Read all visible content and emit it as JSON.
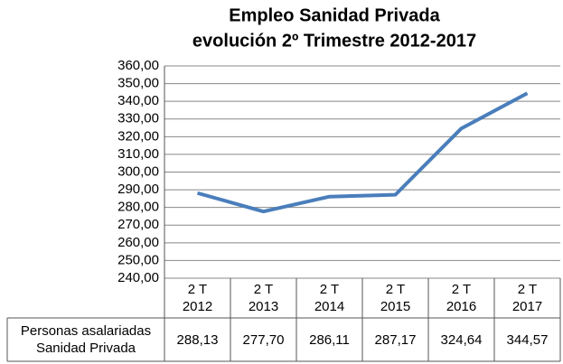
{
  "chart_data": {
    "type": "line",
    "title": [
      "Empleo Sanidad Privada",
      "evolución 2º Trimestre 2012-2017"
    ],
    "categories": [
      "2 T 2012",
      "2 T 2013",
      "2 T 2014",
      "2 T 2015",
      "2 T 2016",
      "2 T 2017"
    ],
    "series": [
      {
        "name": "Personas asalariadas Sanidad Privada",
        "color": "#4a7ebb",
        "values": [
          288.13,
          277.7,
          286.11,
          287.17,
          324.64,
          344.57
        ],
        "value_labels": [
          "288,13",
          "277,70",
          "286,11",
          "287,17",
          "324,64",
          "344,57"
        ]
      }
    ],
    "ylim": [
      240,
      360
    ],
    "yticks": [
      {
        "value": 240,
        "label": "240,00"
      },
      {
        "value": 250,
        "label": "250,00"
      },
      {
        "value": 260,
        "label": "260,00"
      },
      {
        "value": 270,
        "label": "270,00"
      },
      {
        "value": 280,
        "label": "280,00"
      },
      {
        "value": 290,
        "label": "290,00"
      },
      {
        "value": 300,
        "label": "300,00"
      },
      {
        "value": 310,
        "label": "310,00"
      },
      {
        "value": 320,
        "label": "320,00"
      },
      {
        "value": 330,
        "label": "330,00"
      },
      {
        "value": 340,
        "label": "340,00"
      },
      {
        "value": 350,
        "label": "350,00"
      },
      {
        "value": 360,
        "label": "360,00"
      }
    ],
    "grid": true
  }
}
